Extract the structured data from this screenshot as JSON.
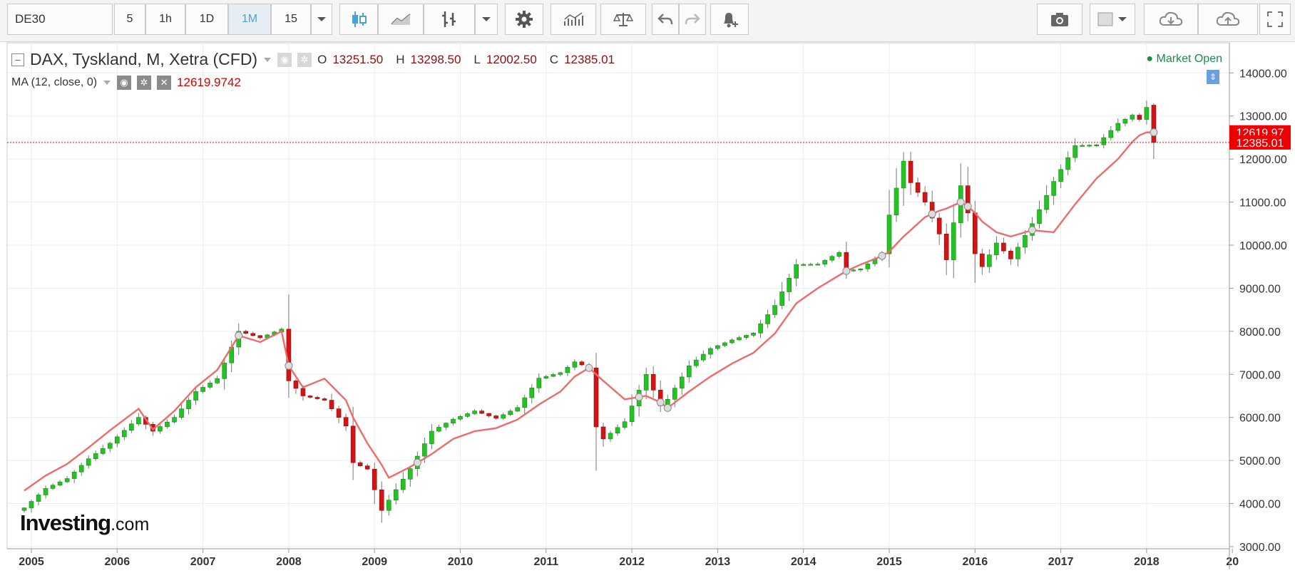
{
  "toolbar": {
    "symbol": "DE30",
    "intervals": [
      "5",
      "1h",
      "1D",
      "1M",
      "15"
    ],
    "active_interval": "1M",
    "icons": [
      "chevron-down-icon",
      "candlestick-icon",
      "line-chart-icon",
      "bar-chart-icon",
      "chevron-down-icon",
      "gear-icon",
      "indicators-icon",
      "compare-scale-icon",
      "undo-icon",
      "redo-icon",
      "add-alert-icon",
      "camera-icon",
      "color-box-icon",
      "chevron-down-icon",
      "cloud-download-icon",
      "cloud-upload-icon",
      "fullscreen-icon"
    ]
  },
  "legend": {
    "title": "DAX, Tyskland, M, Xetra (CFD)",
    "open_label": "O",
    "open": "13251.50",
    "high_label": "H",
    "high": "13298.50",
    "low_label": "L",
    "low": "12002.50",
    "close_label": "C",
    "close": "12385.01",
    "ma_label": "MA (12, close, 0)",
    "ma_value": "12619.9742"
  },
  "status": {
    "market": "Market Open"
  },
  "logo": {
    "brand": "Investing",
    "suffix": ".com"
  },
  "price_tags": {
    "ma": "12619.97",
    "last": "12385.01"
  },
  "colors": {
    "up": "#22c322",
    "down": "#d41414",
    "ma": "#f06a6a",
    "tag": "#ee0000",
    "market_open": "#1f8a4d"
  },
  "chart_data": {
    "type": "candlestick",
    "title": "DAX, Tyskland, M, Xetra (CFD)",
    "x_ticks": [
      "2005",
      "2006",
      "2007",
      "2008",
      "2009",
      "2010",
      "2011",
      "2012",
      "2013",
      "2014",
      "2015",
      "2016",
      "2017",
      "2018",
      "20"
    ],
    "y_ticks": [
      "14000.00",
      "13000.00",
      "12000.00",
      "11000.00",
      "10000.00",
      "9000.00",
      "8000.00",
      "7000.00",
      "6000.00",
      "5000.00",
      "4000.00",
      "3000.00"
    ],
    "ylim": [
      2950,
      14700
    ],
    "grid": true,
    "anchors": [
      [
        "2004-12",
        3900,
        4300
      ],
      [
        "2005-03",
        4350,
        4650
      ],
      [
        "2005-06",
        4580,
        4920
      ],
      [
        "2005-09",
        5040,
        5300
      ],
      [
        "2005-12",
        5400,
        5700
      ],
      [
        "2006-04",
        6000,
        6200
      ],
      [
        "2006-06",
        5680,
        5720
      ],
      [
        "2006-09",
        6000,
        6150
      ],
      [
        "2006-12",
        6600,
        6700
      ],
      [
        "2007-03",
        6900,
        7100
      ],
      [
        "2007-06",
        8000,
        7900
      ],
      [
        "2007-09",
        7850,
        7750
      ],
      [
        "2007-12",
        8050,
        8000
      ],
      [
        "2008-01",
        6850,
        7200
      ],
      [
        "2008-03",
        6500,
        6700
      ],
      [
        "2008-06",
        6400,
        6900
      ],
      [
        "2008-09",
        5800,
        6400
      ],
      [
        "2008-10",
        4950,
        6000
      ],
      [
        "2008-12",
        4800,
        5400
      ],
      [
        "2009-02",
        3840,
        4900
      ],
      [
        "2009-03",
        4080,
        4600
      ],
      [
        "2009-06",
        4810,
        4850
      ],
      [
        "2009-09",
        5680,
        5150
      ],
      [
        "2009-12",
        5960,
        5500
      ],
      [
        "2010-03",
        6150,
        5680
      ],
      [
        "2010-06",
        5980,
        5750
      ],
      [
        "2010-09",
        6230,
        5950
      ],
      [
        "2010-12",
        6910,
        6300
      ],
      [
        "2011-03",
        7040,
        6600
      ],
      [
        "2011-05",
        7290,
        6950
      ],
      [
        "2011-07",
        7150,
        7150
      ],
      [
        "2011-08",
        5780,
        7000
      ],
      [
        "2011-09",
        5500,
        6850
      ],
      [
        "2011-12",
        5900,
        6420
      ],
      [
        "2012-03",
        7000,
        6500
      ],
      [
        "2012-05",
        6270,
        6350
      ],
      [
        "2012-06",
        6420,
        6220
      ],
      [
        "2012-09",
        7200,
        6600
      ],
      [
        "2012-12",
        7600,
        6950
      ],
      [
        "2013-03",
        7800,
        7250
      ],
      [
        "2013-06",
        7960,
        7500
      ],
      [
        "2013-09",
        8600,
        7950
      ],
      [
        "2013-12",
        9550,
        8650
      ],
      [
        "2014-03",
        9560,
        9000
      ],
      [
        "2014-06",
        9830,
        9300
      ],
      [
        "2014-07",
        9400,
        9400
      ],
      [
        "2014-09",
        9450,
        9550
      ],
      [
        "2014-12",
        9800,
        9750
      ],
      [
        "2015-01",
        10700,
        9850
      ],
      [
        "2015-03",
        11950,
        10200
      ],
      [
        "2015-04",
        11450,
        10350
      ],
      [
        "2015-06",
        11000,
        10650
      ],
      [
        "2015-08",
        10260,
        10800
      ],
      [
        "2015-09",
        9660,
        10850
      ],
      [
        "2015-11",
        11380,
        11000
      ],
      [
        "2015-12",
        10750,
        10900
      ],
      [
        "2016-01",
        9800,
        10750
      ],
      [
        "2016-02",
        9500,
        10550
      ],
      [
        "2016-04",
        10050,
        10300
      ],
      [
        "2016-06",
        9680,
        10200
      ],
      [
        "2016-09",
        10500,
        10350
      ],
      [
        "2016-12",
        11480,
        10300
      ],
      [
        "2017-03",
        12310,
        10950
      ],
      [
        "2017-06",
        12330,
        11550
      ],
      [
        "2017-09",
        12830,
        12000
      ],
      [
        "2017-11",
        13020,
        12400
      ],
      [
        "2017-12",
        12920,
        12550
      ],
      [
        "2018-01",
        13200,
        12620
      ],
      [
        "2018-02",
        12385,
        12620
      ]
    ],
    "last_candle": {
      "open": 13251.5,
      "high": 13298.5,
      "low": 12002.5,
      "close": 12385.01
    },
    "ma": {
      "period": 12,
      "source": "close",
      "last": 12619.9742
    }
  }
}
